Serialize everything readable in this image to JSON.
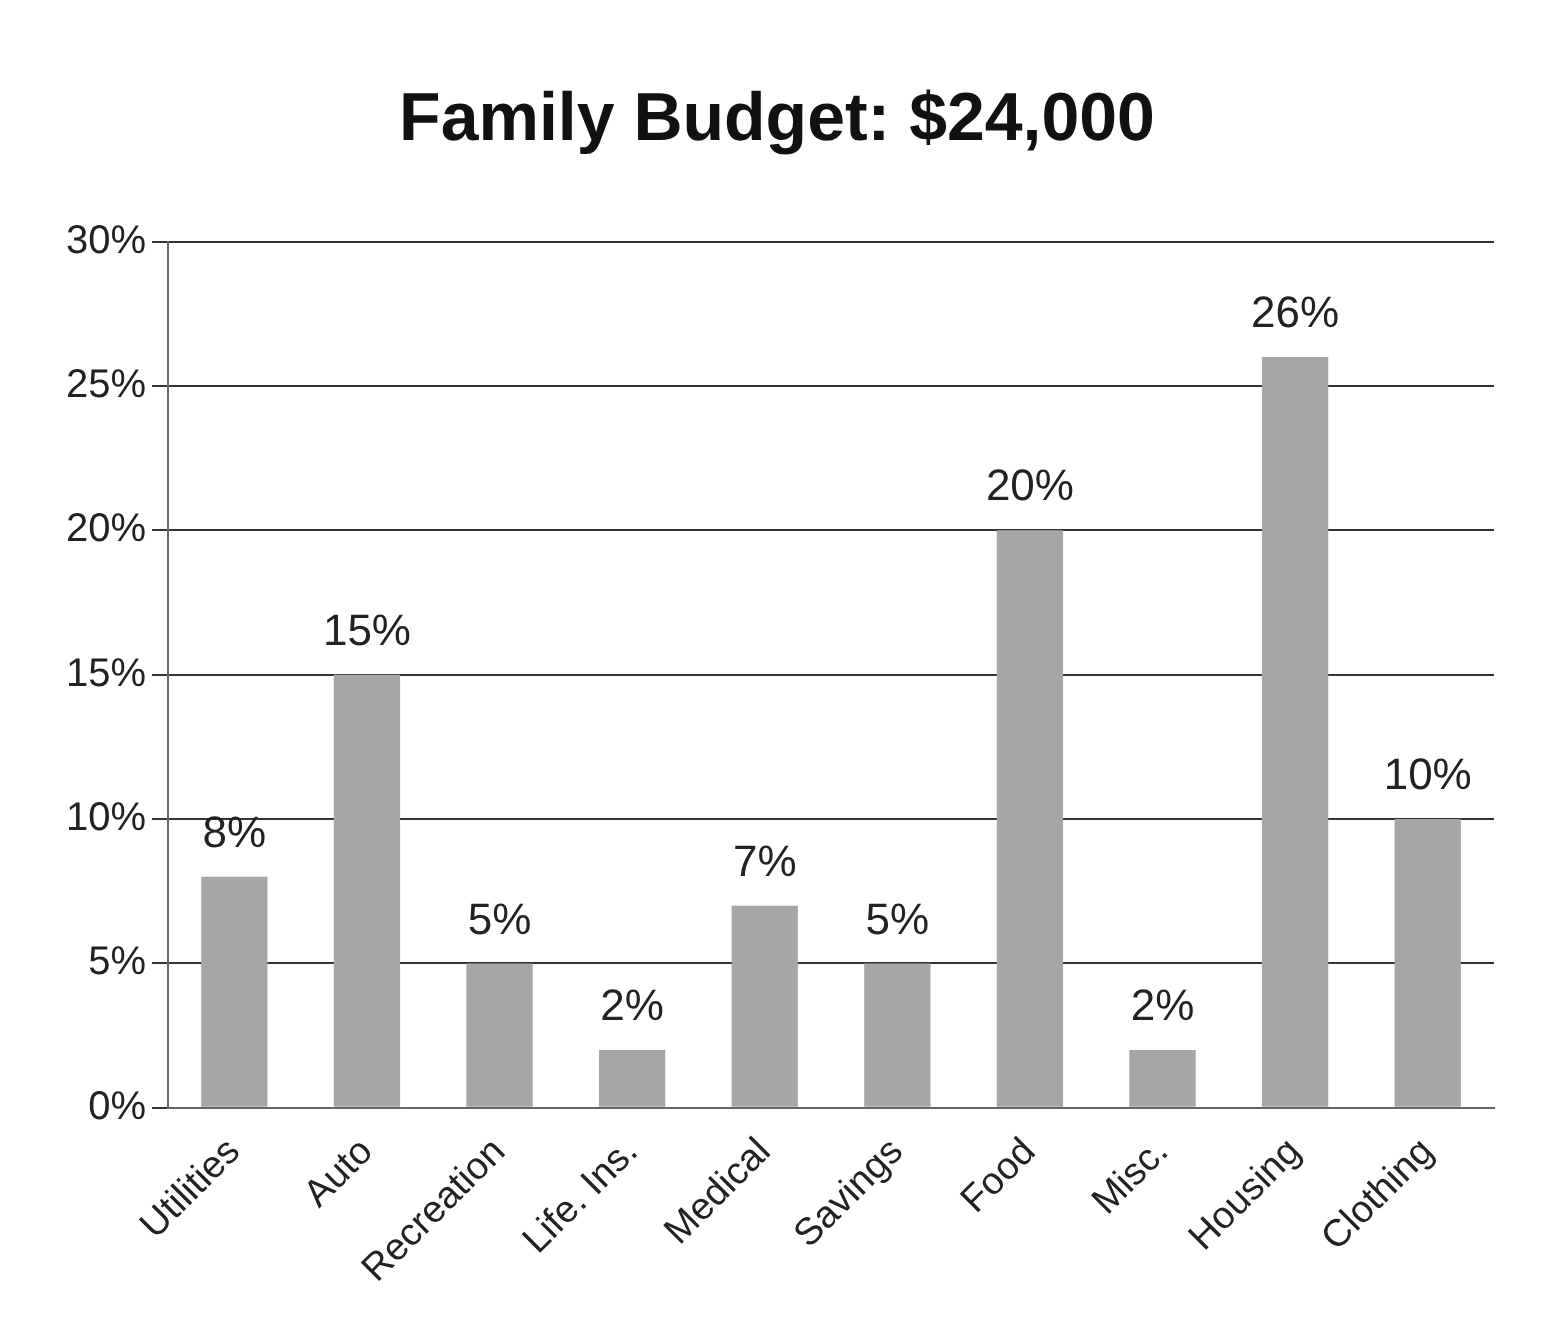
{
  "chart_data": {
    "type": "bar",
    "title": "Family Budget: $24,000",
    "categories": [
      "Utilities",
      "Auto",
      "Recreation",
      "Life. Ins.",
      "Medical",
      "Savings",
      "Food",
      "Misc.",
      "Housing",
      "Clothing"
    ],
    "values": [
      8,
      15,
      5,
      2,
      7,
      5,
      20,
      2,
      26,
      10
    ],
    "value_labels": [
      "8%",
      "15%",
      "5%",
      "2%",
      "7%",
      "5%",
      "20%",
      "2%",
      "26%",
      "10%"
    ],
    "color": "#a6a6a6",
    "ylim": [
      0,
      30
    ],
    "yticks": [
      {
        "value": 0,
        "label": "0%"
      },
      {
        "value": 5,
        "label": "5%"
      },
      {
        "value": 10,
        "label": "10%"
      },
      {
        "value": 15,
        "label": "15%"
      },
      {
        "value": 20,
        "label": "20%"
      },
      {
        "value": 25,
        "label": "25%"
      },
      {
        "value": 30,
        "label": "30%"
      }
    ],
    "grid": "y",
    "legend": false
  }
}
